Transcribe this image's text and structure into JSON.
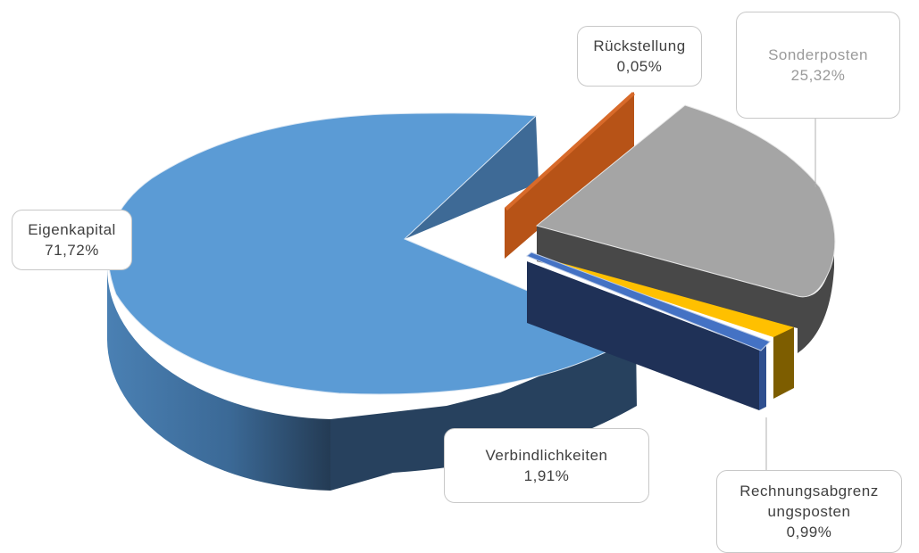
{
  "chart_data": {
    "type": "pie",
    "style": "3d-exploded",
    "slices": [
      {
        "label": "Eigenkapital",
        "value": 71.72,
        "display": "71,72%",
        "color": "#5b9bd5",
        "side_color": "#3f6e99"
      },
      {
        "label": "Rückstellung",
        "value": 0.05,
        "display": "0,05%",
        "color": "#c55a11",
        "side_color": "#a24a0e"
      },
      {
        "label": "Sonderposten",
        "value": 25.32,
        "display": "25,32%",
        "color": "#a5a5a5",
        "side_color": "#474747"
      },
      {
        "label": "Rechnungsabgrenzungsposten",
        "label_lines": [
          "Rechnungsabgrenz",
          "ungsposten"
        ],
        "value": 0.99,
        "display": "0,99%",
        "color": "#ffc000",
        "side_color": "#7a5b00"
      },
      {
        "label": "Verbindlichkeiten",
        "value": 1.91,
        "display": "1,91%",
        "color": "#4472c4",
        "side_color": "#1f3157"
      }
    ],
    "legend": "none",
    "data_labels": "callouts"
  }
}
